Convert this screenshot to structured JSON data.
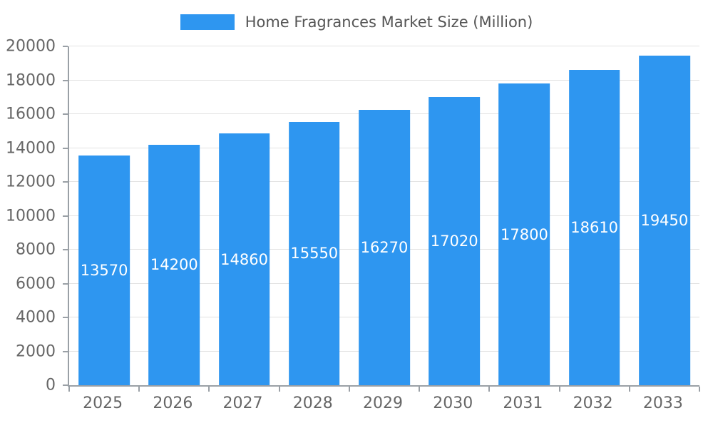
{
  "legend": {
    "label": "Home Fragrances Market Size (Million)"
  },
  "chart_data": {
    "type": "bar",
    "title": "Home Fragrances Market Size (Million)",
    "categories": [
      "2025",
      "2026",
      "2027",
      "2028",
      "2029",
      "2030",
      "2031",
      "2032",
      "2033"
    ],
    "values": [
      13570,
      14200,
      14860,
      15550,
      16270,
      17020,
      17800,
      18610,
      19450
    ],
    "xlabel": "",
    "ylabel": "",
    "ylim": [
      0,
      20000
    ],
    "ytick_step": 2000,
    "grid": true,
    "legend_position": "top",
    "colors": {
      "bar": "#2e96f0",
      "grid": "#e2e2e2",
      "axis": "#9aa0a6",
      "tick_text": "#666666",
      "legend_text": "#555555",
      "value_label": "#ffffff"
    }
  }
}
